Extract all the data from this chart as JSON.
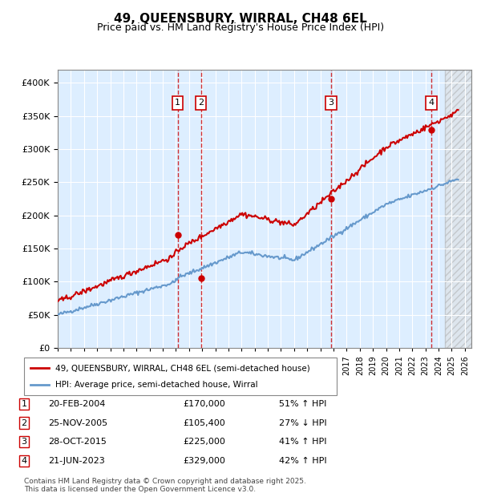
{
  "title": "49, QUEENSBURY, WIRRAL, CH48 6EL",
  "subtitle": "Price paid vs. HM Land Registry's House Price Index (HPI)",
  "ylabel_ticks": [
    "£0",
    "£50K",
    "£100K",
    "£150K",
    "£200K",
    "£250K",
    "£300K",
    "£350K",
    "£400K"
  ],
  "ytick_values": [
    0,
    50000,
    100000,
    150000,
    200000,
    250000,
    300000,
    350000,
    400000
  ],
  "ylim": [
    0,
    420000
  ],
  "xlim_start": 1995.0,
  "xlim_end": 2026.5,
  "transactions": [
    {
      "num": 1,
      "date": "20-FEB-2004",
      "price": 170000,
      "year": 2004.13,
      "hpi_pct": "51% ↑ HPI"
    },
    {
      "num": 2,
      "date": "25-NOV-2005",
      "price": 105400,
      "year": 2005.9,
      "hpi_pct": "27% ↓ HPI"
    },
    {
      "num": 3,
      "date": "28-OCT-2015",
      "price": 225000,
      "year": 2015.82,
      "hpi_pct": "41% ↑ HPI"
    },
    {
      "num": 4,
      "date": "21-JUN-2023",
      "price": 329000,
      "year": 2023.47,
      "hpi_pct": "42% ↑ HPI"
    }
  ],
  "legend_entries": [
    "49, QUEENSBURY, WIRRAL, CH48 6EL (semi-detached house)",
    "HPI: Average price, semi-detached house, Wirral"
  ],
  "footer": "Contains HM Land Registry data © Crown copyright and database right 2025.\nThis data is licensed under the Open Government Licence v3.0.",
  "line_color_price": "#cc0000",
  "line_color_hpi": "#6699cc",
  "bg_color": "#ddeeff",
  "grid_color": "#ffffff",
  "hatch_color": "#cccccc"
}
